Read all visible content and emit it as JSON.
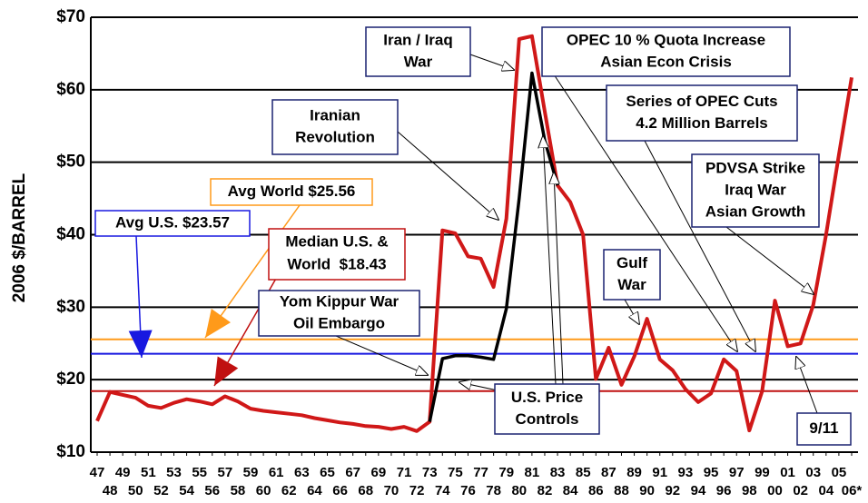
{
  "chart_data": {
    "type": "line",
    "y_label": "2006 $/BARREL",
    "categories": [
      "47",
      "48",
      "49",
      "50",
      "51",
      "52",
      "53",
      "54",
      "55",
      "56",
      "57",
      "58",
      "59",
      "60",
      "61",
      "62",
      "63",
      "64",
      "65",
      "66",
      "67",
      "68",
      "69",
      "70",
      "71",
      "72",
      "73",
      "74",
      "75",
      "76",
      "77",
      "78",
      "79",
      "80",
      "81",
      "82",
      "83",
      "84",
      "85",
      "86",
      "87",
      "88",
      "89",
      "90",
      "91",
      "92",
      "93",
      "94",
      "95",
      "96",
      "97",
      "98",
      "99",
      "00",
      "01",
      "02",
      "03",
      "04",
      "05",
      "06*"
    ],
    "series": [
      {
        "name": "World",
        "color": "#d01818",
        "values": [
          14.3,
          18.3,
          17.9,
          17.5,
          16.4,
          16.1,
          16.8,
          17.3,
          17.0,
          16.6,
          17.7,
          17.0,
          16.0,
          15.7,
          15.5,
          15.3,
          15.1,
          14.7,
          14.4,
          14.1,
          13.9,
          13.6,
          13.5,
          13.2,
          13.5,
          12.9,
          14.2,
          40.6,
          40.2,
          37.0,
          36.7,
          32.8,
          42.2,
          67.0,
          67.4,
          57.0,
          46.8,
          44.5,
          40.0,
          20.1,
          24.4,
          19.3,
          23.2,
          28.4,
          22.8,
          21.3,
          18.7,
          16.9,
          18.1,
          22.8,
          21.2,
          13.0,
          18.4,
          30.9,
          24.6,
          25.0,
          30.3,
          40.0,
          51.0,
          61.7
        ]
      },
      {
        "name": "U.S.",
        "color": "#000000",
        "values": [
          null,
          null,
          null,
          null,
          null,
          null,
          null,
          null,
          null,
          null,
          null,
          null,
          null,
          null,
          null,
          null,
          null,
          null,
          null,
          null,
          null,
          null,
          null,
          null,
          null,
          null,
          14.2,
          22.9,
          23.3,
          23.3,
          23.1,
          22.8,
          29.8,
          45.0,
          62.3,
          53.0,
          46.8,
          null,
          null,
          null,
          null,
          null,
          null,
          null,
          null,
          null,
          null,
          null,
          null,
          null,
          null,
          null,
          null,
          null,
          null,
          null,
          null,
          null,
          null,
          null
        ]
      }
    ],
    "reference_lines": [
      {
        "value": 25.56,
        "label": "Avg World $25.56",
        "color": "#ff9a1a"
      },
      {
        "value": 23.57,
        "label": "Avg U.S. $23.57",
        "color": "#1818e0"
      },
      {
        "value": 18.43,
        "label": [
          "Median U.S. &",
          "World  $18.43"
        ],
        "color": "#c01010"
      }
    ],
    "annotations": [
      {
        "lines": [
          "Iran / Iraq",
          "War"
        ]
      },
      {
        "lines": [
          "OPEC 10 % Quota Increase",
          "Asian Econ Crisis"
        ]
      },
      {
        "lines": [
          "Series of OPEC Cuts",
          "4.2 Million Barrels"
        ]
      },
      {
        "lines": [
          "Iranian",
          "Revolution"
        ]
      },
      {
        "lines": [
          "PDVSA Strike",
          "Iraq War",
          "Asian Growth"
        ]
      },
      {
        "lines": [
          "Gulf",
          "War"
        ]
      },
      {
        "lines": [
          "Yom Kippur War",
          "Oil Embargo"
        ]
      },
      {
        "lines": [
          "U.S. Price",
          "Controls"
        ]
      },
      {
        "lines": [
          "9/11"
        ]
      }
    ],
    "ylim": [
      10,
      70
    ],
    "yticks": [
      {
        "value": 10,
        "label": "$10"
      },
      {
        "value": 20,
        "label": "$20"
      },
      {
        "value": 30,
        "label": "$30"
      },
      {
        "value": 40,
        "label": "$40"
      },
      {
        "value": 50,
        "label": "$50"
      },
      {
        "value": 60,
        "label": "$60"
      },
      {
        "value": 70,
        "label": "$70"
      }
    ],
    "grid": true
  }
}
